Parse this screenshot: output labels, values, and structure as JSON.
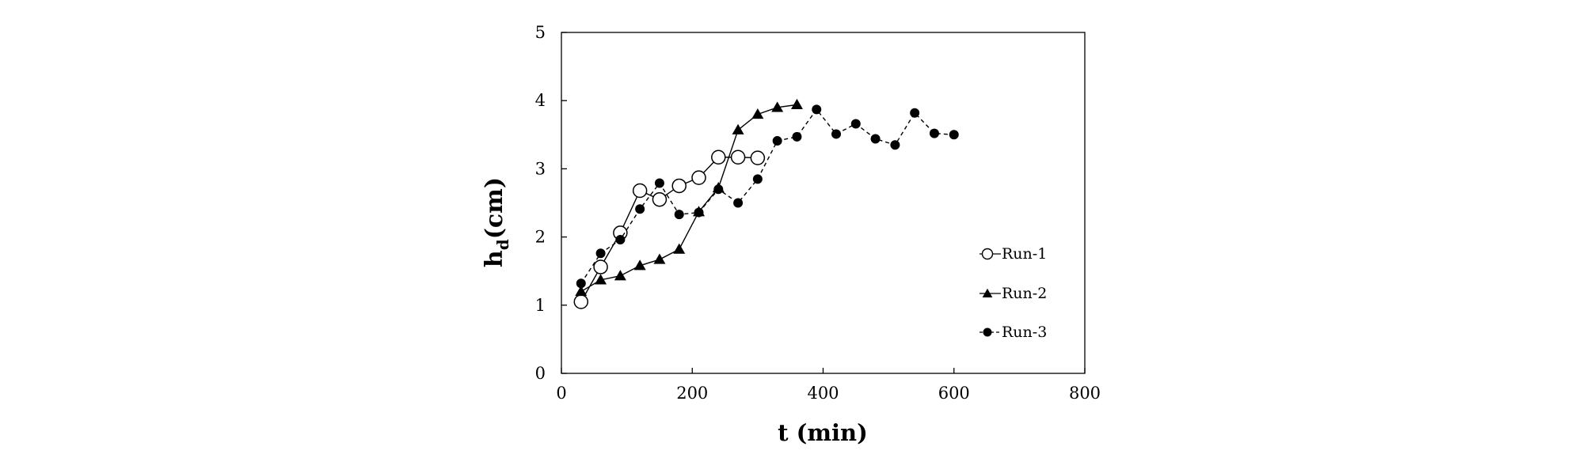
{
  "chart_data": {
    "type": "line",
    "title": "",
    "xlabel": "t (min)",
    "ylabel_main": "h",
    "ylabel_sub": "d",
    "ylabel_unit": "(cm)",
    "xlim": [
      0,
      800
    ],
    "ylim": [
      0,
      5
    ],
    "xticks": [
      0,
      200,
      400,
      600,
      800
    ],
    "yticks": [
      0,
      1,
      2,
      3,
      4,
      5
    ],
    "grid": false,
    "legend_position": "right",
    "series": [
      {
        "name": "Run-1",
        "marker": "open-circle",
        "line": "solid",
        "x": [
          30,
          60,
          90,
          120,
          150,
          180,
          210,
          240,
          270,
          300
        ],
        "y": [
          1.05,
          1.56,
          2.06,
          2.68,
          2.55,
          2.75,
          2.87,
          3.17,
          3.17,
          3.16
        ]
      },
      {
        "name": "Run-2",
        "marker": "filled-triangle",
        "line": "solid",
        "x": [
          30,
          60,
          90,
          120,
          150,
          180,
          210,
          240,
          270,
          300,
          330,
          360
        ],
        "y": [
          1.2,
          1.37,
          1.43,
          1.58,
          1.67,
          1.82,
          2.37,
          2.72,
          3.57,
          3.8,
          3.9,
          3.94
        ]
      },
      {
        "name": "Run-3",
        "marker": "filled-circle",
        "line": "dashed",
        "x": [
          30,
          60,
          90,
          120,
          150,
          180,
          210,
          240,
          270,
          300,
          330,
          360,
          390,
          420,
          450,
          480,
          510,
          540,
          570,
          600
        ],
        "y": [
          1.32,
          1.76,
          1.96,
          2.41,
          2.79,
          2.33,
          2.36,
          2.7,
          2.5,
          2.85,
          3.41,
          3.47,
          3.87,
          3.51,
          3.66,
          3.44,
          3.35,
          3.82,
          3.52,
          3.5
        ]
      }
    ]
  }
}
